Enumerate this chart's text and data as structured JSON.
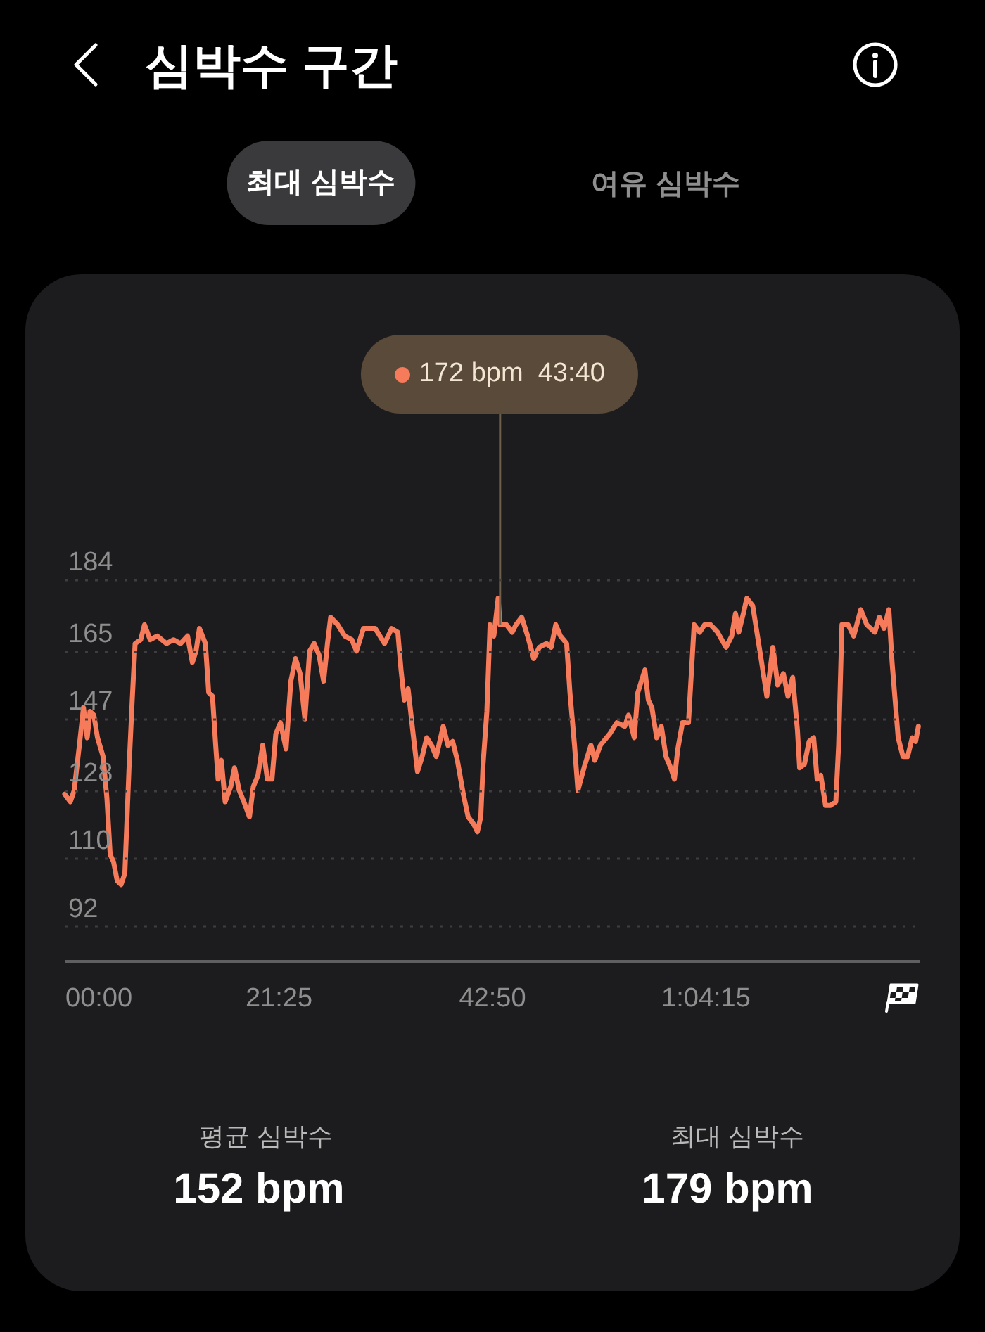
{
  "chart_data": {
    "type": "line",
    "title": "심박수 구간",
    "annotations": [
      "최대 심박수",
      "여유 심박수",
      {
        "text": "172 bpm  43:40",
        "x": 43.6667,
        "y": 172
      },
      "평균 심박수",
      "152 bpm",
      "최대 심박수",
      "179 bpm"
    ],
    "x": [
      0,
      0.56,
      0.95,
      1.51,
      1.88,
      2.26,
      2.54,
      2.92,
      3.29,
      3.85,
      4.23,
      4.56,
      4.9,
      5.26,
      5.65,
      6.03,
      6.45,
      6.77,
      7.06,
      7.62,
      8,
      8.57,
      9.27,
      10.2,
      10.91,
      11.62,
      12.32,
      12.8,
      13.17,
      13.51,
      14.11,
      14.44,
      14.82,
      15.14,
      15.38,
      15.71,
      16.09,
      16.65,
      17.03,
      17.5,
      17.97,
      18.53,
      18.91,
      19.38,
      19.86,
      20.32,
      20.79,
      21.17,
      21.64,
      22.2,
      22.68,
      23.15,
      23.61,
      24.09,
      24.56,
      25.02,
      25.5,
      25.97,
      26.35,
      26.67,
      27.38,
      28.09,
      28.79,
      29.26,
      29.96,
      31.15,
      32.08,
      32.79,
      33.41,
      33.73,
      34.06,
      34.44,
      34.9,
      35.38,
      35.85,
      36.31,
      36.79,
      37.26,
      37.96,
      38.43,
      38.91,
      39.38,
      39.98,
      40.46,
      41.03,
      41.39,
      41.73,
      41.96,
      42.34,
      42.66,
      43.04,
      43.47,
      43.6667,
      44.31,
      44.88,
      45.26,
      45.83,
      46.43,
      47.04,
      47.6,
      48.31,
      48.79,
      49.25,
      49.72,
      50.34,
      50.67,
      51.13,
      51.47,
      52.08,
      52.78,
      53.16,
      53.73,
      54.66,
      55.37,
      56.17,
      56.55,
      57.12,
      57.48,
      58.19,
      58.53,
      58.89,
      59.37,
      59.84,
      60.3,
      60.78,
      61.15,
      61.49,
      61.96,
      62.56,
      63.13,
      63.69,
      64.17,
      64.78,
      65.48,
      66.33,
      66.9,
      67.28,
      67.6,
      68.07,
      68.41,
      69.01,
      69.72,
      70.42,
      71.03,
      71.51,
      72.08,
      72.54,
      73.01,
      73.49,
      73.71,
      74.19,
      74.66,
      75.12,
      75.46,
      75.83,
      76.31,
      76.78,
      77.34,
      77.62,
      77.95,
      78.57,
      79.13,
      79.84,
      80.44,
      81.25,
      81.71,
      82.18,
      82.66,
      82.98,
      83.59,
      84.07,
      84.54,
      85,
      85.34,
      85.62
    ],
    "series": [
      {
        "color": "#f57b5b",
        "values": [
          127,
          125,
          128,
          141,
          150,
          142,
          149,
          148,
          142,
          137,
          126,
          111,
          109,
          104,
          103,
          106,
          134,
          152,
          167,
          168,
          172,
          168,
          169,
          167,
          168,
          167,
          169,
          162,
          165,
          171,
          167,
          154,
          153,
          140,
          131,
          136,
          125,
          129,
          134,
          128,
          125,
          121,
          129,
          132,
          140,
          131,
          131,
          143,
          146,
          139,
          157,
          163,
          159,
          147,
          165,
          167,
          164,
          157,
          167,
          174,
          172,
          169,
          168,
          165,
          171,
          171,
          167,
          171,
          170,
          160,
          152,
          155,
          144,
          133,
          137,
          142,
          140,
          137,
          145,
          140,
          141,
          136,
          127,
          121,
          119,
          117,
          121,
          135,
          149,
          172,
          169,
          179,
          172,
          172,
          170,
          172,
          174,
          169,
          163,
          166,
          167,
          166,
          172,
          169,
          167,
          154,
          140,
          128,
          134,
          140,
          136,
          140,
          143,
          146,
          145,
          148,
          142,
          154,
          160,
          152,
          150,
          142,
          145,
          137,
          134,
          131,
          139,
          146,
          146,
          172,
          170,
          172,
          172,
          170,
          166,
          169,
          175,
          170,
          175,
          179,
          177,
          165,
          153,
          166,
          156,
          159,
          153,
          158,
          144,
          134,
          135,
          141,
          142,
          131,
          132,
          124,
          124,
          125,
          140,
          172,
          172,
          169,
          176,
          172,
          170,
          174,
          171,
          176,
          162,
          142,
          137,
          137,
          142,
          141,
          145
        ]
      }
    ],
    "xlim": [
      0,
      85.6667
    ],
    "xticks": [
      {
        "value": 0,
        "label": "00:00"
      },
      {
        "value": 21.4167,
        "label": "21:25"
      },
      {
        "value": 42.8333,
        "label": "42:50"
      },
      {
        "value": 64.25,
        "label": "1:04:15"
      }
    ],
    "ylim": [
      82.8,
      184
    ],
    "yticks": [
      92,
      110,
      128,
      147,
      165,
      184
    ],
    "grid": "y"
  }
}
